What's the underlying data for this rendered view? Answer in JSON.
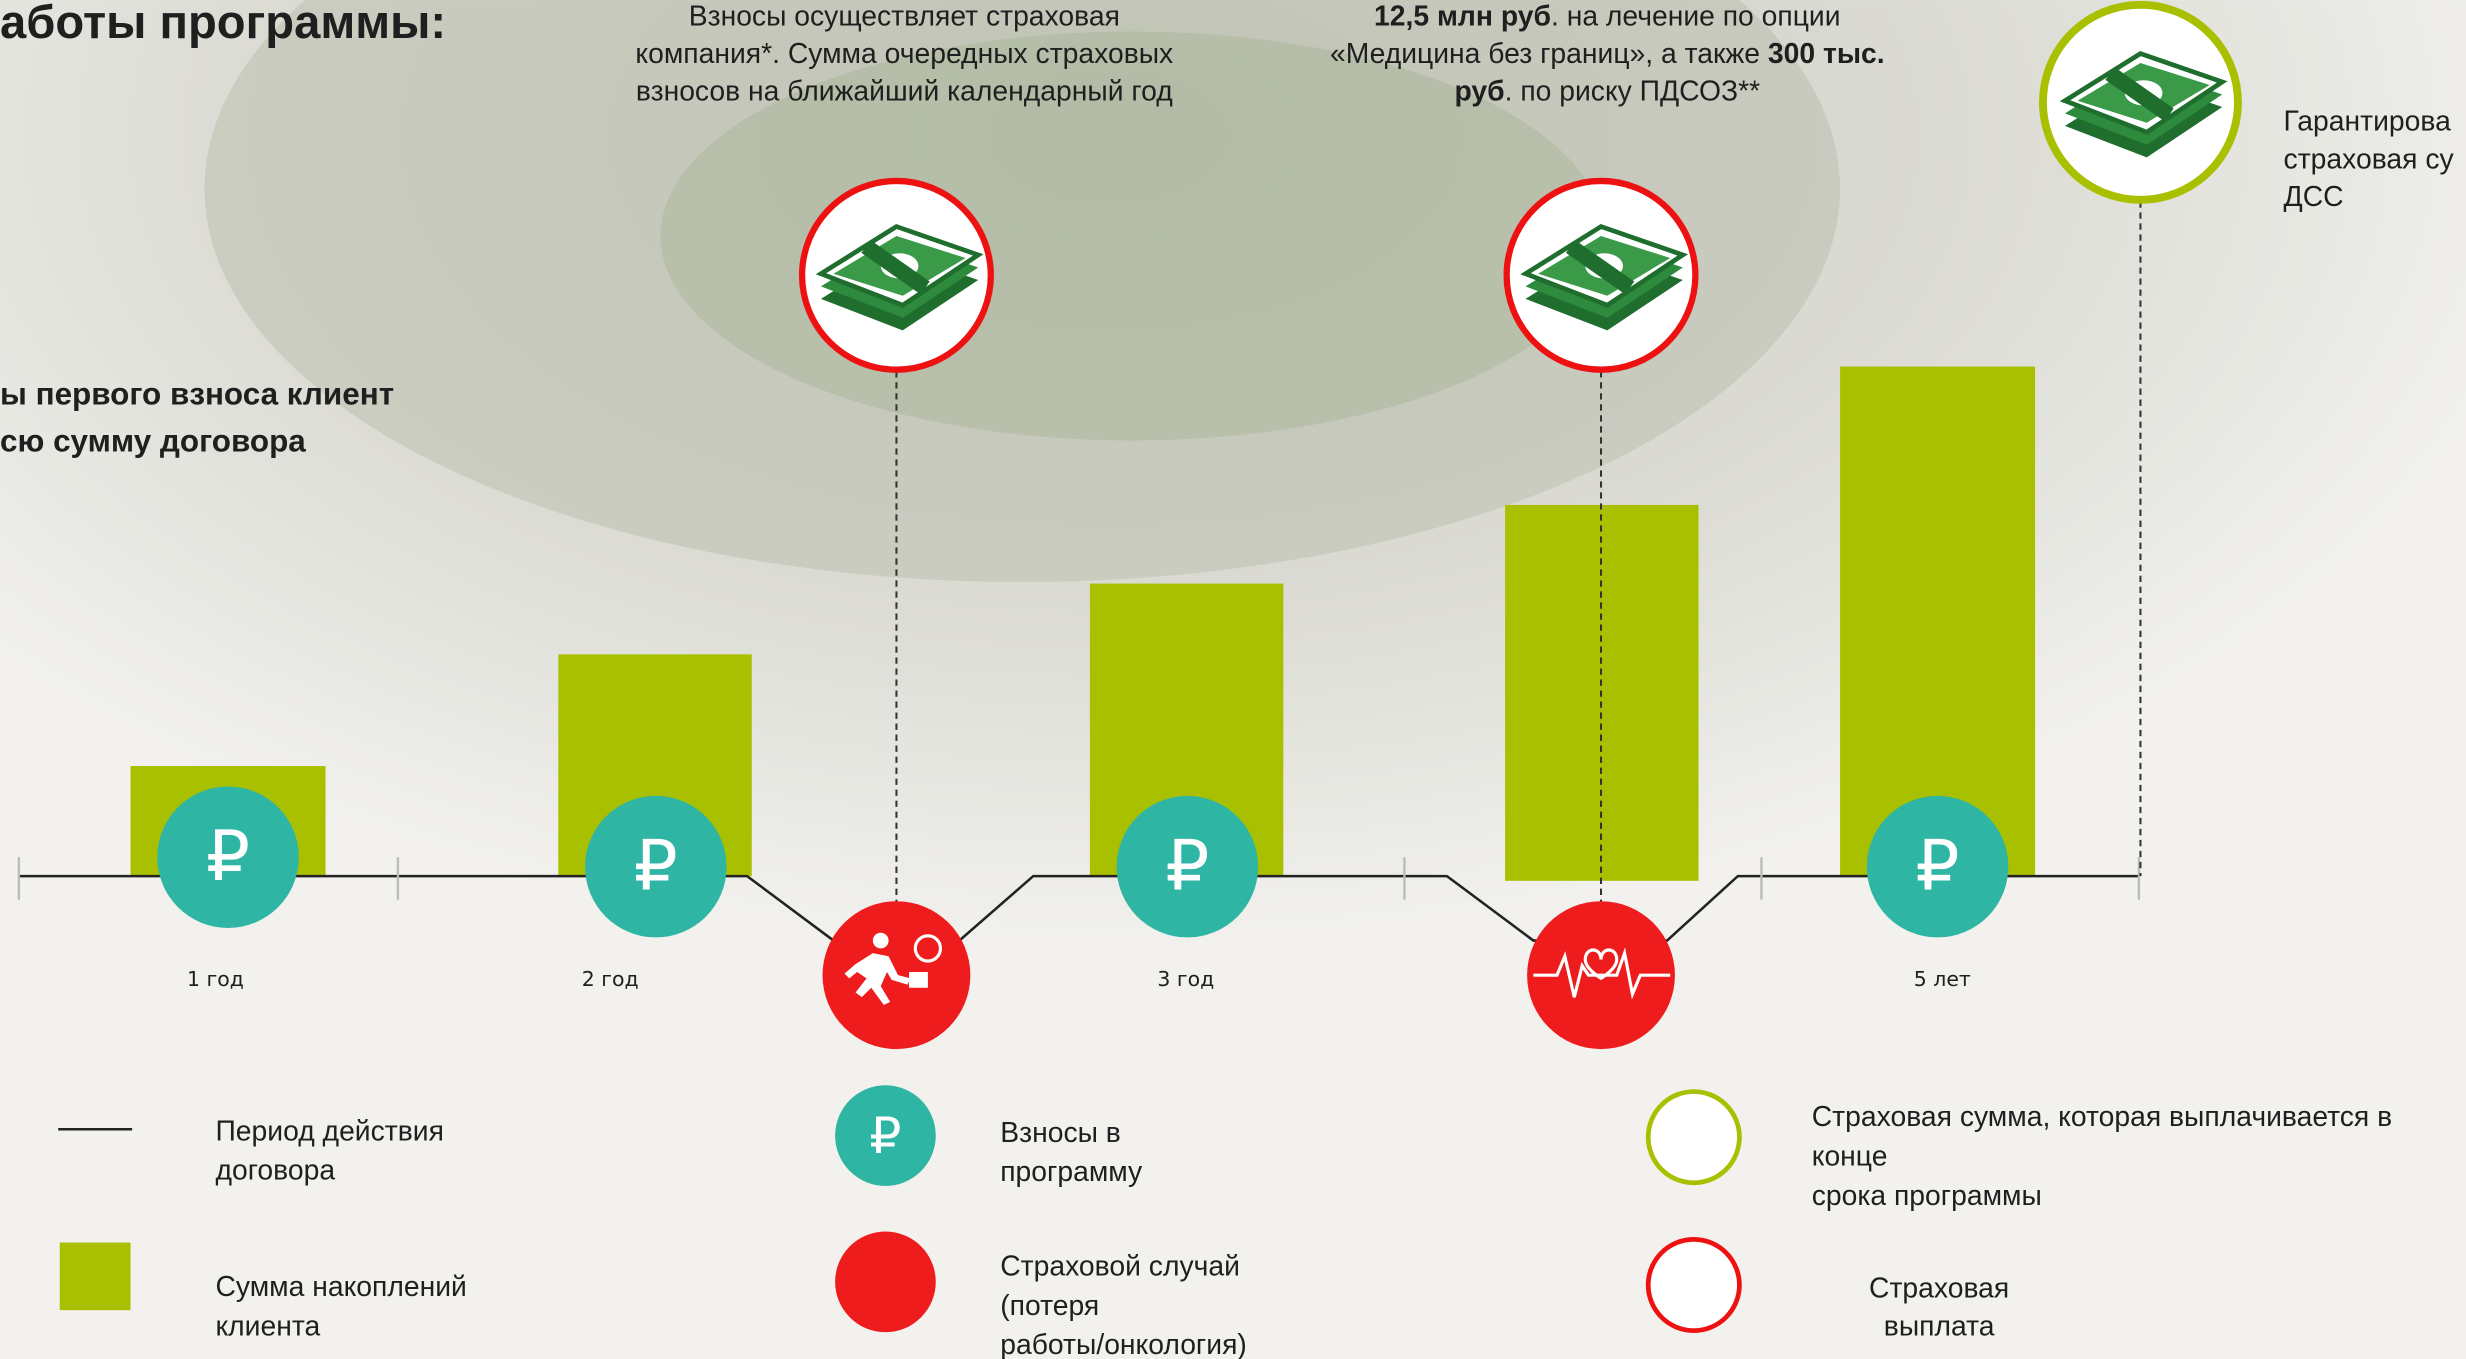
{
  "header": {
    "title": "аботы программы:",
    "intro_lines": [
      "ы первого взноса клиент",
      "сю сумму договора"
    ]
  },
  "notes": {
    "premiums_lines": [
      "Взносы осуществляет страховая",
      "компания*. Сумма очередных страховых",
      "взносов на ближайший календарный год"
    ],
    "payout_lines": [
      [
        "12,5 млн  руб",
        ". на лечение по опции"
      ],
      [
        "«Медицина без границ», а также ",
        "300 тыс."
      ],
      [
        "руб",
        ". по риску ПДСОЗ**"
      ]
    ],
    "end_lines": [
      "Гарантирова",
      "страховая су",
      "ДСС"
    ]
  },
  "periods": [
    "1 год",
    "2 год",
    "3 год",
    "5 лет"
  ],
  "ruble_symbol": "₽",
  "legend": {
    "term": [
      "Период действия",
      "договора"
    ],
    "savings": [
      "Сумма накоплений",
      "клиента"
    ],
    "premiums": [
      "Взносы в",
      "программу"
    ],
    "event": [
      "Страховой случай",
      "(потеря",
      "работы/онкология)"
    ],
    "maturity": [
      "Страховая сумма, которая выплачивается в",
      "конце",
      "срока программы"
    ],
    "payout": [
      "Страховая",
      "выплата"
    ]
  }
}
